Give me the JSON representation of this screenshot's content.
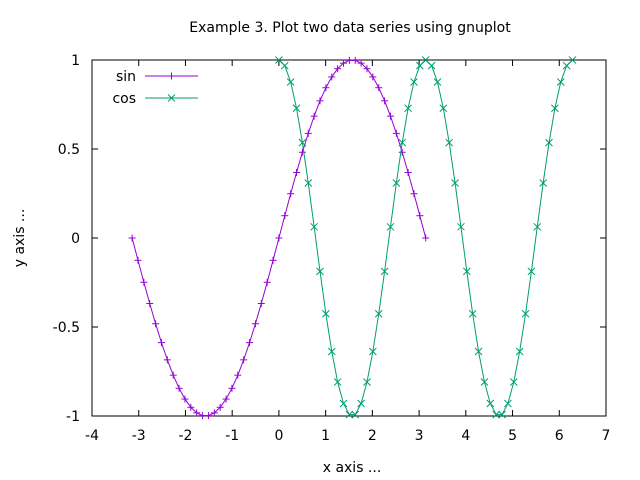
{
  "chart_data": {
    "type": "line",
    "title": "Example 3. Plot two data series using gnuplot",
    "xlabel": "x axis ...",
    "ylabel": "y axis ...",
    "xlim": [
      -4,
      7
    ],
    "ylim": [
      -1,
      1
    ],
    "x_ticks": [
      "-4",
      "-3",
      "-2",
      "-1",
      "0",
      "1",
      "2",
      "3",
      "4",
      "5",
      "6",
      "7"
    ],
    "y_ticks": [
      "-1",
      "-0.5",
      "0",
      "0.5",
      "1"
    ],
    "grid": false,
    "legend_position": "top-left",
    "series": [
      {
        "name": "sin",
        "function": "sin(x)",
        "x_range": [
          -3.14159,
          3.14159
        ],
        "points": 51,
        "marker": "plus",
        "color": "#9400d3"
      },
      {
        "name": "cos",
        "function": "cos(2x)",
        "x_range": [
          0,
          6.28318
        ],
        "points": 51,
        "marker": "x",
        "color": "#009e73"
      }
    ]
  }
}
